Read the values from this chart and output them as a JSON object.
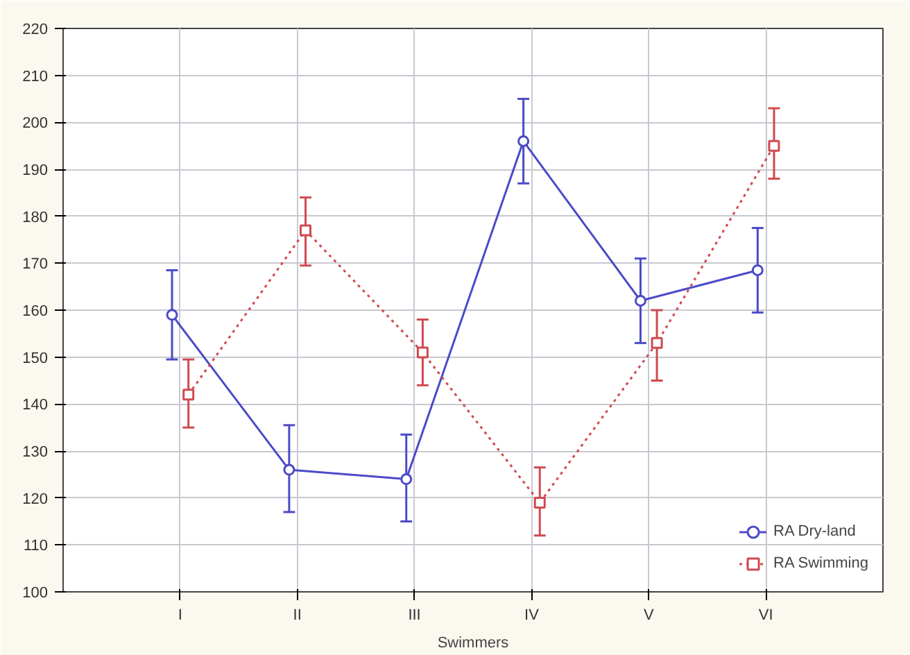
{
  "chart_data": {
    "type": "line",
    "xlabel": "Swimmers",
    "categories": [
      "I",
      "II",
      "III",
      "IV",
      "V",
      "VI"
    ],
    "series": [
      {
        "name": "RA Dry-land",
        "color": "#4b4bc8",
        "line_style": "solid",
        "marker": "circle",
        "values": [
          159,
          126,
          124,
          196,
          162,
          168.5
        ],
        "errors": [
          [
            149.5,
            168.5
          ],
          [
            117,
            135.5
          ],
          [
            115,
            133.5
          ],
          [
            187,
            205
          ],
          [
            153,
            171
          ],
          [
            159.5,
            177.5
          ]
        ]
      },
      {
        "name": "RA Swimming",
        "color": "#d04a50",
        "line_style": "dotted",
        "marker": "square",
        "values": [
          142,
          177,
          151,
          119,
          153,
          195
        ],
        "errors": [
          [
            135,
            149.5
          ],
          [
            169.5,
            184
          ],
          [
            144,
            158
          ],
          [
            112,
            126.5
          ],
          [
            145,
            160
          ],
          [
            188,
            203
          ]
        ]
      }
    ],
    "ylim": [
      100,
      220
    ],
    "yticks": [
      100,
      110,
      120,
      130,
      140,
      150,
      160,
      170,
      180,
      190,
      200,
      210,
      220
    ],
    "grid": true,
    "legend": "bottom right"
  }
}
